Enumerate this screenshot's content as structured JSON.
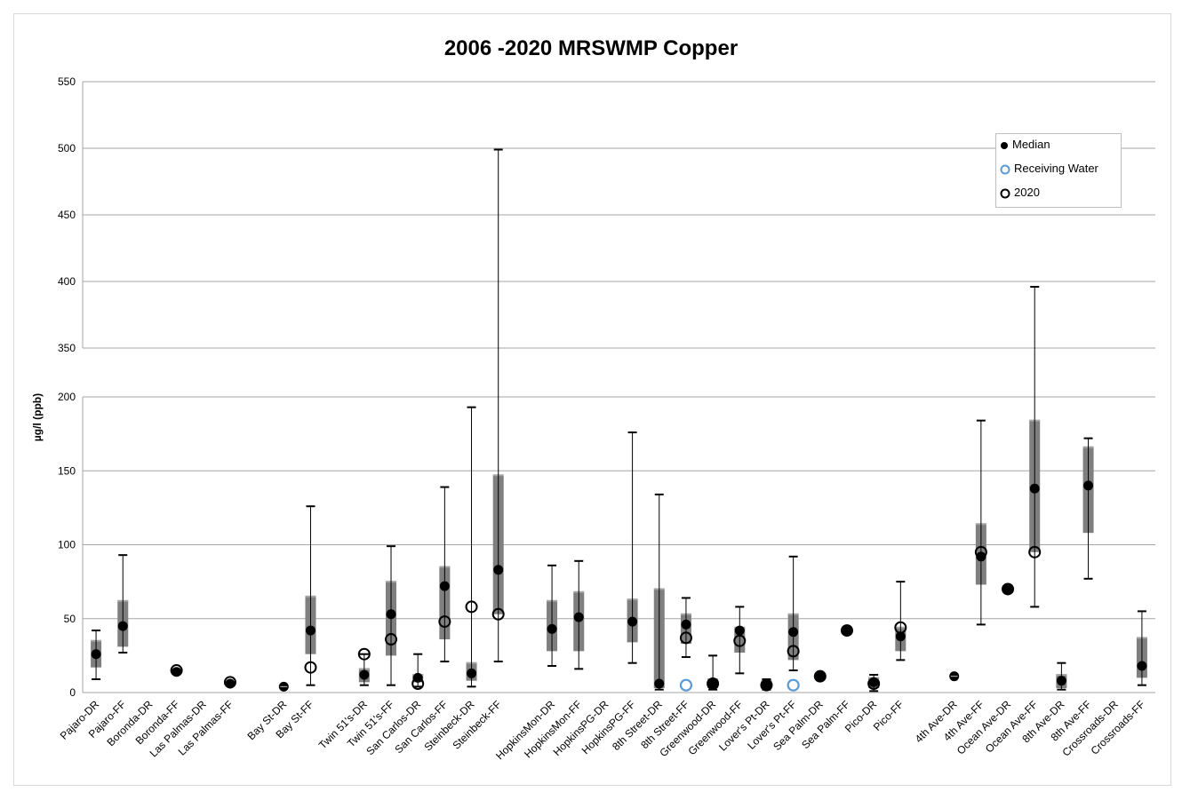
{
  "chart_data": {
    "type": "box",
    "title": "2006 -2020 MRSWMP Copper",
    "ylabel": "µg/l  (ppb)",
    "xlabel": "",
    "y_axis_broken": true,
    "y_lower_range": [
      0,
      200
    ],
    "y_upper_range": [
      350,
      550
    ],
    "y_ticks": [
      0,
      50,
      100,
      150,
      200,
      350,
      400,
      450,
      500,
      550
    ],
    "gridlines": true,
    "legend": {
      "position": "top-right",
      "entries": [
        {
          "label": "Median",
          "marker": "filled-circle",
          "color": "#000000"
        },
        {
          "label": "Receiving Water",
          "marker": "open-circle",
          "color": "#5b9bd5"
        },
        {
          "label": "2020",
          "marker": "open-circle",
          "color": "#000000"
        }
      ]
    },
    "colors": {
      "box": "#7f7f7f",
      "whisker": "#000000",
      "median": "#000000",
      "receiving": "#5b9bd5",
      "grid": "#a6a6a6"
    },
    "categories": [
      {
        "label": "Pajaro-DR",
        "q1": 17,
        "q3": 35,
        "min": 9,
        "max": 42,
        "median": 26
      },
      {
        "label": "Pajaro-FF",
        "q1": 31,
        "q3": 62,
        "min": 27,
        "max": 93,
        "median": 45
      },
      {
        "label": "Boronda-DR"
      },
      {
        "label": "Boronda-FF",
        "median": 14,
        "y2020": 15
      },
      {
        "label": "Las Palmas-DR"
      },
      {
        "label": "Las Palmas-FF",
        "median": 6,
        "y2020": 7
      },
      {
        "label": ""
      },
      {
        "label": "Bay St-DR",
        "median": 4
      },
      {
        "label": "Bay St-FF",
        "q1": 26,
        "q3": 65,
        "min": 5,
        "max": 126,
        "median": 42,
        "y2020": 17
      },
      {
        "label": ""
      },
      {
        "label": "Twin 51's-DR",
        "q1": 7,
        "q3": 16,
        "min": 5,
        "max": 26,
        "median": 12,
        "y2020": 26
      },
      {
        "label": "Twin 51's-FF",
        "q1": 25,
        "q3": 75,
        "min": 5,
        "max": 99,
        "median": 53,
        "y2020": 36
      },
      {
        "label": "San Carlos-DR",
        "q1": 7,
        "q3": 12,
        "min": 4,
        "max": 26,
        "median": 10,
        "y2020": 6
      },
      {
        "label": "San Carlos-FF",
        "q1": 36,
        "q3": 85,
        "min": 21,
        "max": 139,
        "median": 72,
        "y2020": 48
      },
      {
        "label": "Steinbeck-DR",
        "q1": 8,
        "q3": 20,
        "min": 4,
        "max": 193,
        "median": 13,
        "y2020": 58
      },
      {
        "label": "Steinbeck-FF",
        "q1": 53,
        "q3": 147,
        "min": 21,
        "max": 499,
        "median": 83,
        "y2020": 53
      },
      {
        "label": ""
      },
      {
        "label": "HopkinsMon-DR",
        "q1": 28,
        "q3": 62,
        "min": 18,
        "max": 86,
        "median": 43
      },
      {
        "label": "HopkinsMon-FF",
        "q1": 28,
        "q3": 68,
        "min": 16,
        "max": 89,
        "median": 51
      },
      {
        "label": "HopkinsPG-DR"
      },
      {
        "label": "HopkinsPG-FF",
        "q1": 34,
        "q3": 63,
        "min": 20,
        "max": 176,
        "median": 48
      },
      {
        "label": "8th Street-DR",
        "q1": 3,
        "q3": 70,
        "min": 2,
        "max": 134,
        "median": 6
      },
      {
        "label": "8th Street-FF",
        "q1": 33,
        "q3": 53,
        "min": 24,
        "max": 64,
        "median": 46,
        "y2020": 37,
        "receiving": 5
      },
      {
        "label": "Greenwood-DR",
        "q1": 3,
        "q3": 9,
        "min": 2,
        "max": 25,
        "median": 6,
        "y2020": 6
      },
      {
        "label": "Greenwood-FF",
        "q1": 27,
        "q3": 44,
        "min": 13,
        "max": 58,
        "median": 42,
        "y2020": 35
      },
      {
        "label": "Lover's Pt-DR",
        "q1": 3,
        "q3": 8,
        "min": 2,
        "max": 9,
        "median": 5,
        "y2020": 5
      },
      {
        "label": "Lover's Pt-FF",
        "q1": 22,
        "q3": 53,
        "min": 15,
        "max": 92,
        "median": 41,
        "y2020": 28,
        "receiving": 5
      },
      {
        "label": "Sea Palm-DR",
        "median": 11,
        "y2020": 11
      },
      {
        "label": "Sea Palm-FF",
        "median": 42,
        "y2020": 42
      },
      {
        "label": "Pico-DR",
        "q1": 3,
        "q3": 10,
        "min": 1,
        "max": 12,
        "median": 7,
        "y2020": 6
      },
      {
        "label": "Pico-FF",
        "q1": 28,
        "q3": 44,
        "min": 22,
        "max": 75,
        "median": 38,
        "y2020": 44
      },
      {
        "label": ""
      },
      {
        "label": "4th Ave-DR",
        "median": 11
      },
      {
        "label": "4th Ave-FF",
        "q1": 73,
        "q3": 114,
        "min": 46,
        "max": 184,
        "median": 92,
        "y2020": 95
      },
      {
        "label": "Ocean Ave-DR",
        "median": 70,
        "y2020": 70
      },
      {
        "label": "Ocean Ave-FF",
        "q1": 95,
        "q3": 184,
        "min": 58,
        "max": 396,
        "median": 138,
        "y2020": 95
      },
      {
        "label": "8th Ave-DR",
        "q1": 3,
        "q3": 12,
        "min": 2,
        "max": 20,
        "median": 8
      },
      {
        "label": "8th Ave-FF",
        "q1": 108,
        "q3": 166,
        "min": 77,
        "max": 172,
        "median": 140
      },
      {
        "label": "Crossroads-DR"
      },
      {
        "label": "Crossroads-FF",
        "q1": 10,
        "q3": 37,
        "min": 5,
        "max": 55,
        "median": 18
      }
    ]
  }
}
